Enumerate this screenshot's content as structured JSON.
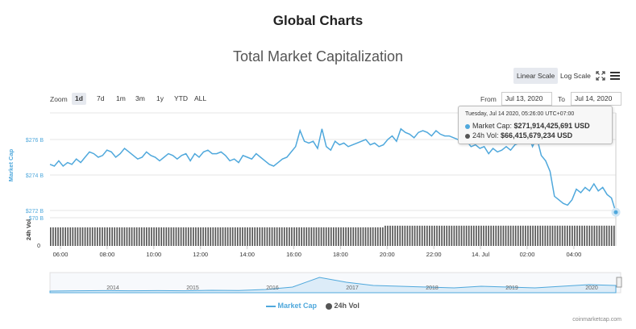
{
  "page": {
    "title": "Global Charts"
  },
  "chart_title": "Total Market Capitalization",
  "scale": {
    "linear": "Linear Scale",
    "log": "Log Scale"
  },
  "zoom": {
    "label": "Zoom",
    "options": [
      "1d",
      "7d",
      "1m",
      "3m",
      "1y",
      "YTD",
      "ALL"
    ],
    "active": "1d"
  },
  "range": {
    "from_label": "From",
    "from": "Jul 13, 2020",
    "to_label": "To",
    "to": "Jul 14, 2020"
  },
  "tooltip": {
    "datetime": "Tuesday, Jul 14 2020, 05:26:00 UTC+07:00",
    "market_cap_label": "Market Cap:",
    "market_cap_value": "$271,914,425,691 USD",
    "volume_label": "24h Vol:",
    "volume_value": "$66,415,679,234 USD"
  },
  "legend": {
    "market_cap": "Market Cap",
    "volume": "24h Vol"
  },
  "credit": "coinmarketcap.com",
  "colors": {
    "market_cap": "#4fa8dc",
    "volume": "#555555",
    "accent": "#3b8fcf"
  },
  "chart_data": {
    "type": "line",
    "title": "Total Market Capitalization",
    "x_ticks": [
      "06:00",
      "08:00",
      "10:00",
      "12:00",
      "14:00",
      "16:00",
      "18:00",
      "20:00",
      "22:00",
      "14. Jul",
      "02:00",
      "04:00"
    ],
    "y_axis": {
      "label": "Market Cap",
      "ticks": [
        "$272 B",
        "$274 B",
        "$276 B"
      ],
      "range": [
        270,
        277.5
      ],
      "unit": "B USD"
    },
    "y2_axis": {
      "label": "24h Vol",
      "ticks": [
        "$70 B",
        "0"
      ]
    },
    "series": [
      {
        "name": "Market Cap",
        "color": "#4fa8dc",
        "values": [
          274.6,
          274.5,
          274.8,
          274.5,
          274.7,
          274.6,
          274.9,
          274.7,
          275.0,
          275.3,
          275.2,
          275.0,
          275.1,
          275.4,
          275.3,
          275.0,
          275.2,
          275.5,
          275.3,
          275.1,
          274.9,
          275.0,
          275.3,
          275.1,
          275.0,
          274.8,
          275.0,
          275.2,
          275.1,
          274.9,
          275.1,
          275.2,
          274.8,
          275.2,
          275.0,
          275.3,
          275.4,
          275.2,
          275.2,
          275.3,
          275.1,
          274.8,
          274.9,
          274.7,
          275.1,
          275.0,
          274.9,
          275.2,
          275.0,
          274.8,
          274.6,
          274.5,
          274.7,
          274.9,
          275.0,
          275.3,
          275.6,
          276.5,
          275.9,
          275.8,
          275.9,
          275.5,
          276.6,
          275.6,
          275.4,
          275.9,
          275.7,
          275.8,
          275.6,
          275.7,
          275.8,
          275.9,
          276.0,
          275.7,
          275.8,
          275.6,
          275.7,
          276.0,
          276.2,
          275.9,
          276.6,
          276.4,
          276.3,
          276.1,
          276.4,
          276.5,
          276.4,
          276.2,
          276.5,
          276.3,
          276.2,
          276.2,
          276.1,
          276.0,
          275.8,
          275.9,
          275.6,
          275.7,
          275.5,
          275.6,
          275.2,
          275.5,
          275.3,
          275.4,
          275.6,
          275.4,
          275.7,
          275.8,
          276.0,
          276.3,
          275.6,
          276.1,
          275.1,
          274.8,
          274.2,
          272.8,
          272.6,
          272.4,
          272.3,
          272.6,
          273.2,
          273.0,
          273.3,
          273.1,
          273.5,
          273.1,
          273.3,
          272.9,
          272.7,
          271.9
        ],
        "hover_point": {
          "x": "05:26",
          "value": 271.9
        }
      },
      {
        "name": "24h Vol",
        "color": "#555555",
        "values_note": "approx. constant",
        "values": [
          66.0,
          66.4
        ]
      }
    ],
    "navigator": {
      "years": [
        "2014",
        "2015",
        "2016",
        "2017",
        "2018",
        "2019",
        "2020"
      ]
    },
    "grid": true,
    "legend": "bottom-center"
  }
}
